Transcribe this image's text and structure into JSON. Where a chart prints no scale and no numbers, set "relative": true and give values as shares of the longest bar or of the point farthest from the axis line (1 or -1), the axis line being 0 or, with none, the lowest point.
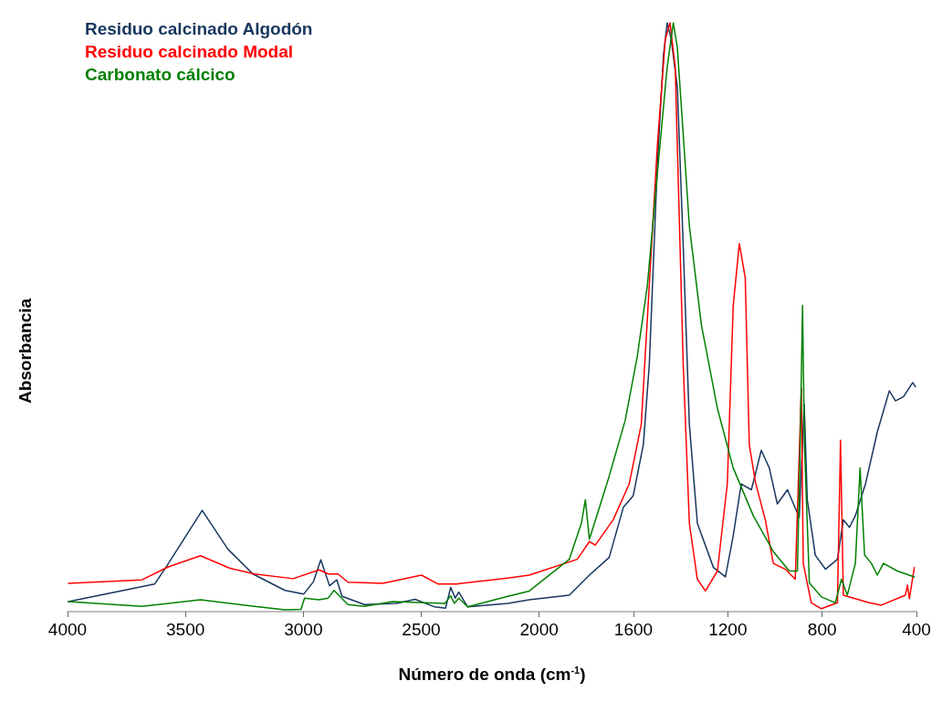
{
  "chart_data": {
    "type": "line",
    "relative": true,
    "xlabel": "Número de onda (cm$^{-1}$)",
    "ylabel": "Absorbancia",
    "xlim": [
      4000,
      400
    ],
    "xticks": [
      4000,
      3500,
      3000,
      2500,
      2000,
      1600,
      1200,
      800,
      400
    ],
    "grid": false,
    "legend": "top left",
    "marker": "none",
    "line_style": "solid",
    "series": [
      {
        "name": "Residuo calcinado Algodón",
        "color": "#17375e",
        "x": [
          3996,
          3630,
          3577,
          3429,
          3320,
          3214,
          3078,
          2998,
          2957,
          2926,
          2889,
          2858,
          2836,
          2741,
          2605,
          2526,
          2443,
          2397,
          2375,
          2356,
          2341,
          2303,
          2133,
          2042,
          1872,
          1787,
          1703,
          1643,
          1601,
          1558,
          1533,
          1499,
          1473,
          1457,
          1440,
          1414,
          1389,
          1363,
          1329,
          1261,
          1210,
          1177,
          1143,
          1100,
          1058,
          1024,
          990,
          947,
          897,
          876,
          863,
          829,
          786,
          735,
          710,
          684,
          659,
          616,
          566,
          515,
          489,
          455,
          416,
          404
        ],
        "values": [
          0.017,
          0.047,
          0.079,
          0.172,
          0.106,
          0.064,
          0.036,
          0.03,
          0.051,
          0.088,
          0.044,
          0.054,
          0.026,
          0.012,
          0.014,
          0.021,
          0.008,
          0.006,
          0.041,
          0.023,
          0.033,
          0.008,
          0.014,
          0.02,
          0.028,
          0.062,
          0.092,
          0.177,
          0.197,
          0.284,
          0.419,
          0.756,
          0.945,
          1,
          0.972,
          0.891,
          0.621,
          0.318,
          0.15,
          0.075,
          0.059,
          0.129,
          0.217,
          0.207,
          0.274,
          0.244,
          0.183,
          0.207,
          0.16,
          0.352,
          0.19,
          0.096,
          0.072,
          0.089,
          0.156,
          0.143,
          0.163,
          0.217,
          0.305,
          0.375,
          0.358,
          0.365,
          0.389,
          0.382
        ]
      },
      {
        "name": "Residuo calcinado Modal",
        "color": "#ff0000",
        "x": [
          3996,
          3684,
          3573,
          3436,
          3314,
          3207,
          3044,
          2933,
          2895,
          2853,
          2811,
          2663,
          2499,
          2430,
          2350,
          2133,
          2042,
          1838,
          1787,
          1762,
          1686,
          1618,
          1567,
          1533,
          1499,
          1465,
          1445,
          1423,
          1389,
          1363,
          1329,
          1295,
          1244,
          1202,
          1177,
          1151,
          1126,
          1109,
          1083,
          1041,
          1007,
          956,
          914,
          888,
          880,
          846,
          803,
          735,
          722,
          710,
          600,
          549,
          447,
          438,
          430,
          409
        ],
        "values": [
          0.048,
          0.054,
          0.076,
          0.095,
          0.074,
          0.064,
          0.056,
          0.071,
          0.064,
          0.064,
          0.05,
          0.048,
          0.062,
          0.047,
          0.047,
          0.057,
          0.062,
          0.089,
          0.119,
          0.113,
          0.156,
          0.217,
          0.318,
          0.554,
          0.79,
          0.972,
          1,
          0.925,
          0.419,
          0.15,
          0.055,
          0.035,
          0.069,
          0.217,
          0.52,
          0.625,
          0.567,
          0.284,
          0.22,
          0.156,
          0.082,
          0.072,
          0.055,
          0.379,
          0.082,
          0.015,
          0.005,
          0.015,
          0.291,
          0.028,
          0.015,
          0.011,
          0.028,
          0.045,
          0.022,
          0.075
        ]
      },
      {
        "name": "Carbonato cálcico",
        "color": "#008000",
        "x": [
          3996,
          3684,
          3436,
          3207,
          3078,
          3010,
          2995,
          2933,
          2895,
          2870,
          2811,
          2741,
          2622,
          2400,
          2375,
          2360,
          2341,
          2303,
          2133,
          2042,
          1872,
          1821,
          1804,
          1787,
          1703,
          1635,
          1584,
          1541,
          1499,
          1457,
          1431,
          1414,
          1389,
          1363,
          1312,
          1244,
          1177,
          1092,
          1007,
          939,
          905,
          893,
          883,
          875,
          854,
          803,
          744,
          718,
          693,
          659,
          639,
          620,
          591,
          566,
          540,
          481,
          409
        ],
        "values": [
          0.017,
          0.009,
          0.02,
          0.009,
          0.003,
          0.004,
          0.023,
          0.02,
          0.023,
          0.036,
          0.012,
          0.009,
          0.017,
          0.014,
          0.027,
          0.014,
          0.023,
          0.008,
          0.026,
          0.035,
          0.089,
          0.15,
          0.19,
          0.123,
          0.23,
          0.325,
          0.433,
          0.554,
          0.743,
          0.925,
          1,
          0.958,
          0.81,
          0.655,
          0.487,
          0.345,
          0.244,
          0.163,
          0.102,
          0.069,
          0.069,
          0.284,
          0.52,
          0.284,
          0.049,
          0.025,
          0.015,
          0.055,
          0.028,
          0.082,
          0.244,
          0.096,
          0.082,
          0.062,
          0.082,
          0.069,
          0.059
        ]
      }
    ]
  }
}
